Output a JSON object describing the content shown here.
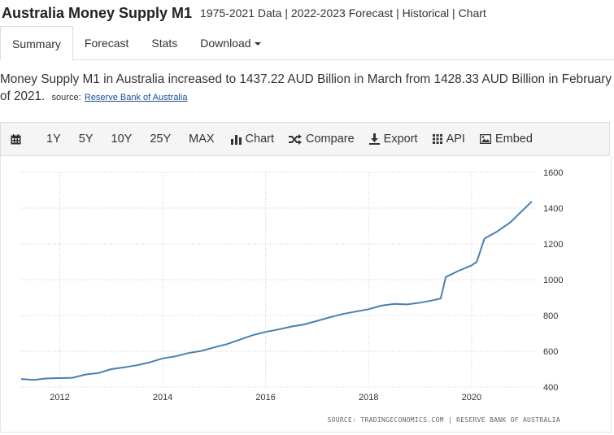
{
  "header": {
    "title": "Australia Money Supply M1",
    "subtitle": "1975-2021 Data | 2022-2023 Forecast | Historical | Chart"
  },
  "tabs": [
    {
      "label": "Summary",
      "active": true
    },
    {
      "label": "Forecast"
    },
    {
      "label": "Stats"
    },
    {
      "label": "Download"
    }
  ],
  "description": {
    "text": "Money Supply M1 in Australia increased to 1437.22 AUD Billion in March from 1428.33 AUD Billion in February of 2021.",
    "source_label": "source:",
    "source_link": "Reserve Bank of Australia"
  },
  "toolbar": {
    "calendar_icon": "calendar-icon",
    "ranges": [
      "1Y",
      "5Y",
      "10Y",
      "25Y",
      "MAX"
    ],
    "chart_label": "Chart",
    "compare_label": "Compare",
    "export_label": "Export",
    "api_label": "API",
    "embed_label": "Embed"
  },
  "chart_source": "SOURCE: TRADINGECONOMICS.COM | RESERVE BANK OF AUSTRALIA",
  "colors": {
    "line": "#4a7fb0",
    "grid": "#cccccc"
  },
  "chart_data": {
    "type": "line",
    "title": "",
    "xlabel": "",
    "ylabel": "",
    "xlim": [
      2011.25,
      2021.25
    ],
    "ylim": [
      400,
      1600
    ],
    "yticks": [
      400,
      600,
      800,
      1000,
      1200,
      1400,
      1600
    ],
    "xticks": [
      2012,
      2014,
      2016,
      2018,
      2020
    ],
    "grid": true,
    "legend": "none",
    "series": [
      {
        "x": [
          2011.25,
          2011.5,
          2011.75,
          2012.0,
          2012.25,
          2012.5,
          2012.75,
          2013.0,
          2013.25,
          2013.5,
          2013.75,
          2014.0,
          2014.25,
          2014.5,
          2014.75,
          2015.0,
          2015.25,
          2015.5,
          2015.75,
          2016.0,
          2016.25,
          2016.5,
          2016.75,
          2017.0,
          2017.25,
          2017.5,
          2017.75,
          2018.0,
          2018.25,
          2018.5,
          2018.75,
          2019.0,
          2019.25,
          2019.4,
          2019.5,
          2019.75,
          2020.0,
          2020.1,
          2020.25,
          2020.5,
          2020.75,
          2021.0,
          2021.17
        ],
        "values": [
          445,
          440,
          448,
          450,
          452,
          470,
          478,
          500,
          510,
          522,
          538,
          560,
          572,
          590,
          602,
          622,
          640,
          665,
          690,
          708,
          722,
          738,
          750,
          770,
          790,
          808,
          822,
          835,
          855,
          865,
          862,
          872,
          885,
          895,
          1015,
          1050,
          1080,
          1100,
          1230,
          1270,
          1320,
          1390,
          1437
        ]
      }
    ]
  }
}
